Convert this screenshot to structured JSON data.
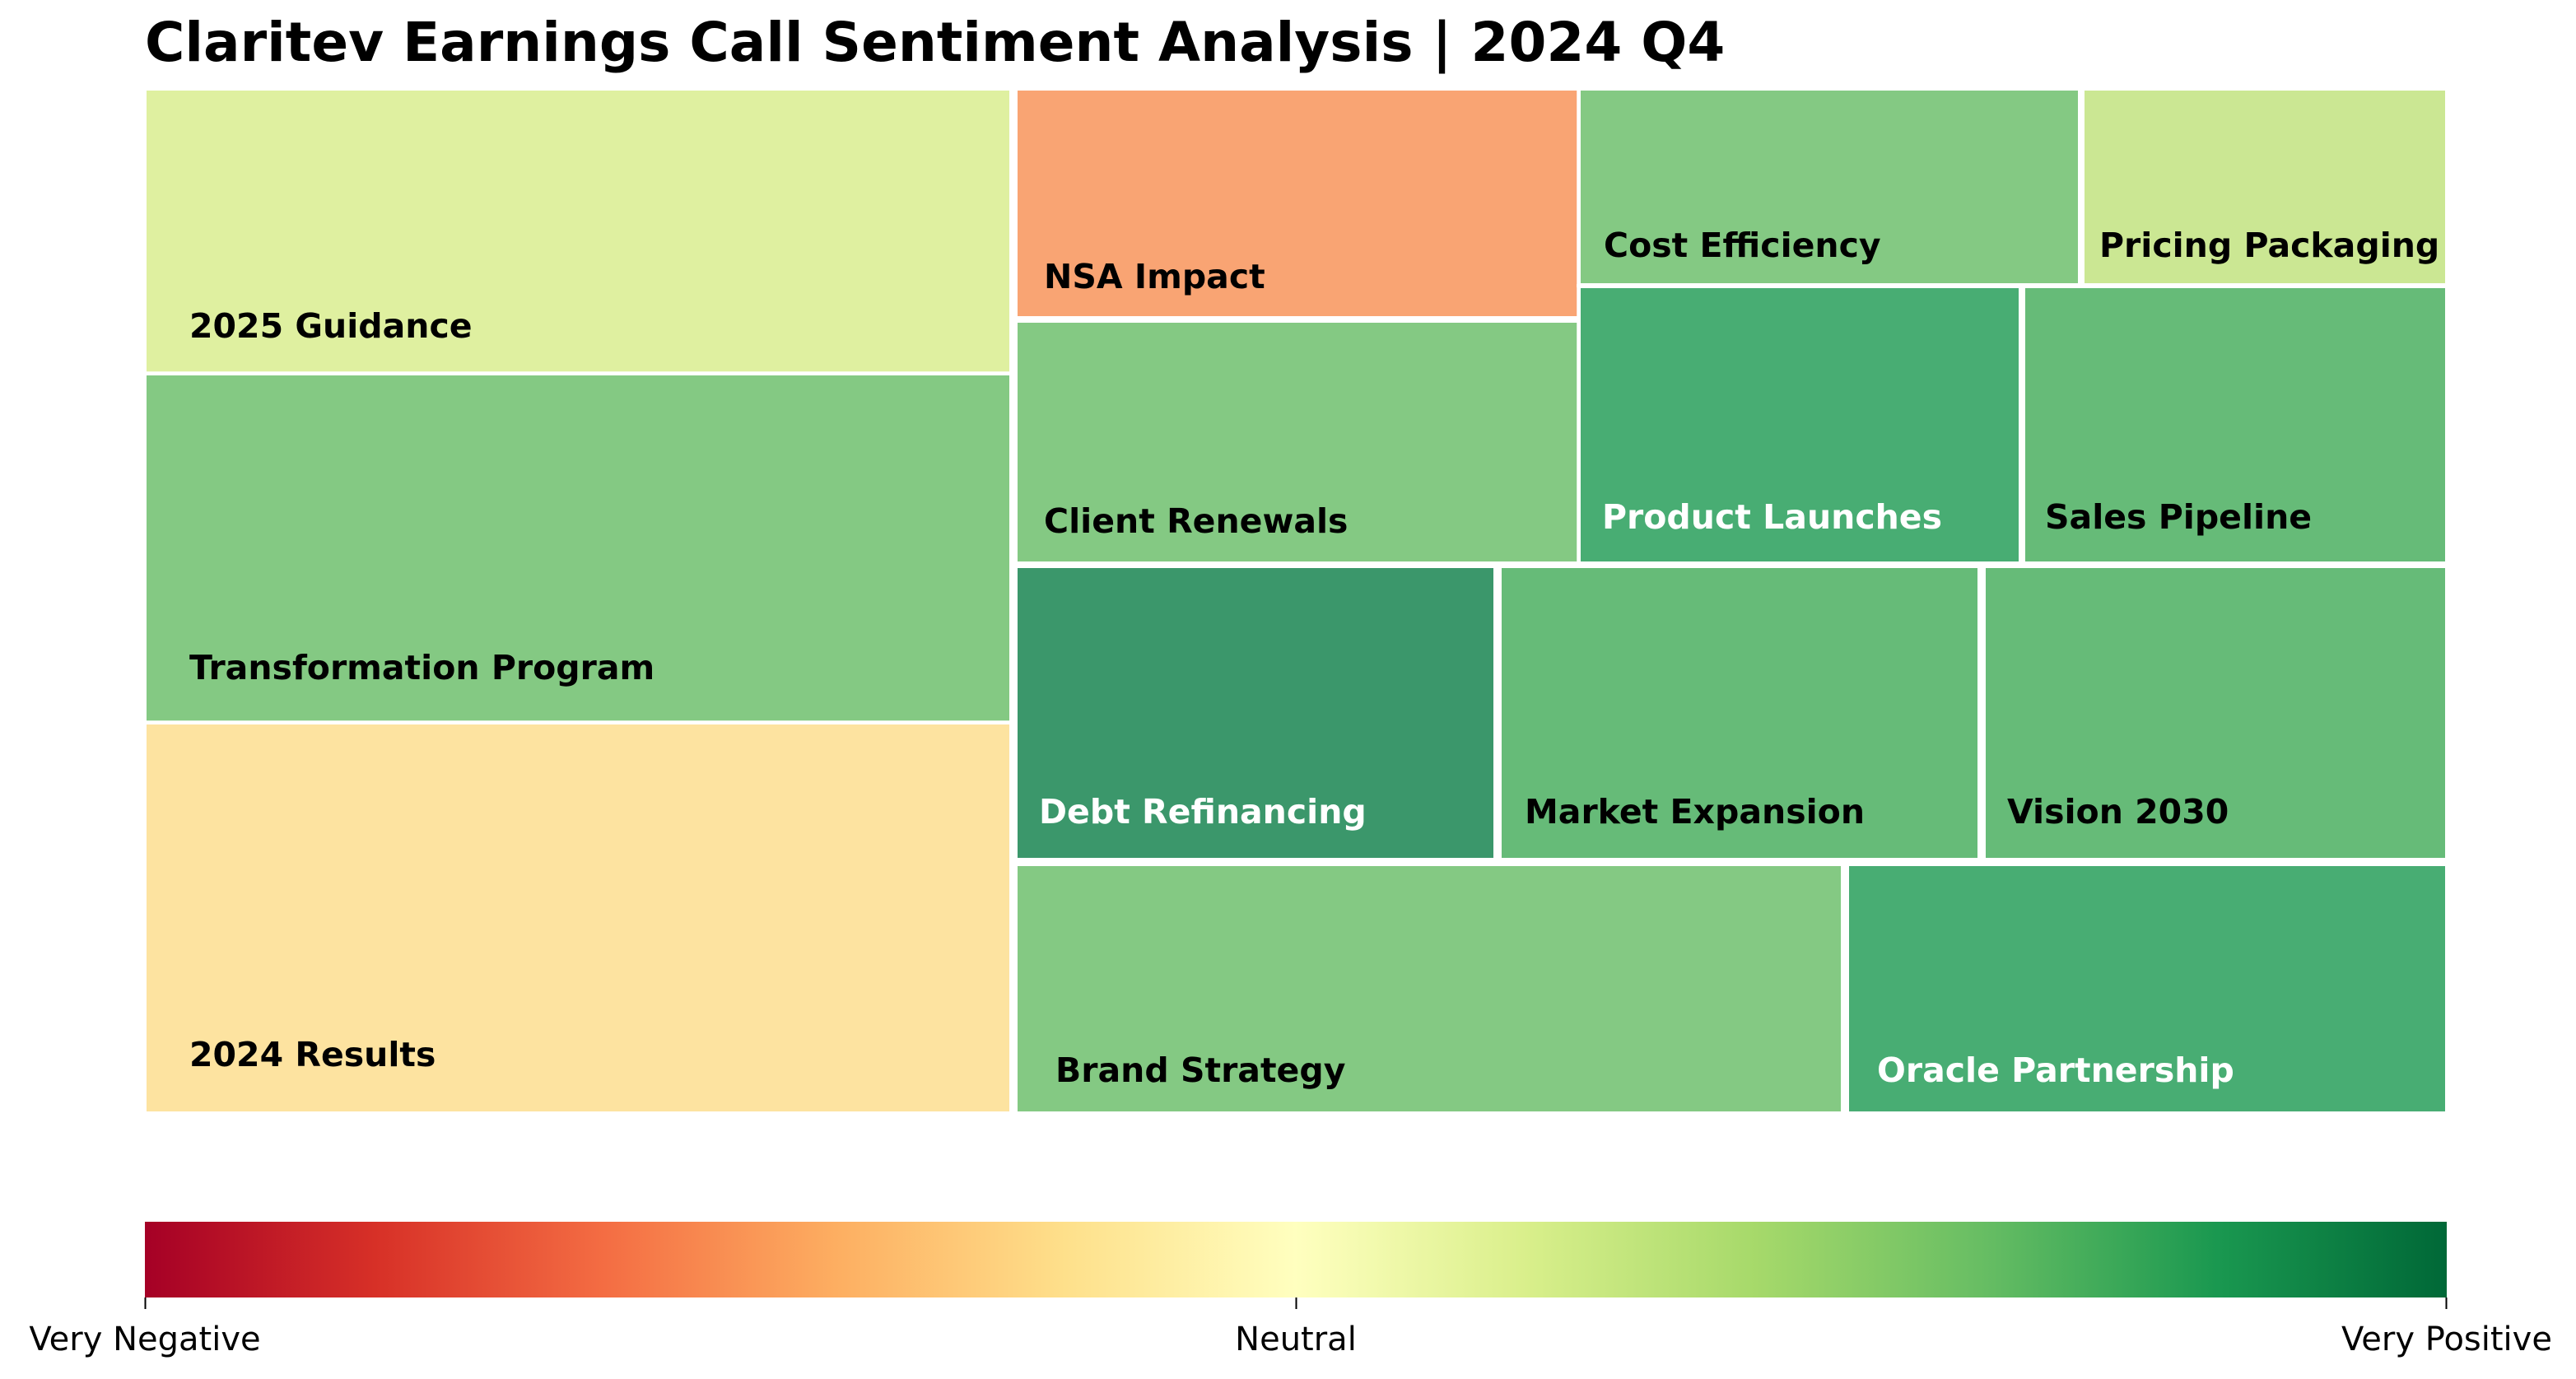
{
  "chart_data": {
    "type": "treemap",
    "title": "Claritev Earnings Call Sentiment Analysis | 2024 Q4",
    "color_scale": {
      "colormap": "RdYlGn",
      "range": [
        -1,
        1
      ],
      "tick_labels": [
        "Very Negative",
        "Neutral",
        "Very Positive"
      ],
      "stops": [
        "#a50026",
        "#d73027",
        "#f46d43",
        "#fdae61",
        "#fee08b",
        "#ffffbf",
        "#d9ef8b",
        "#a6d96a",
        "#66bd63",
        "#1a9850",
        "#006837"
      ]
    },
    "topics": [
      {
        "name": "2025 Guidance",
        "sentiment": 0.4,
        "color": "#dff0a0",
        "label_color": "#000000"
      },
      {
        "name": "Transformation Program",
        "sentiment": 0.7,
        "color": "#84c983",
        "label_color": "#000000"
      },
      {
        "name": "2024 Results",
        "sentiment": -0.05,
        "color": "#fde3a0",
        "label_color": "#000000"
      },
      {
        "name": "NSA Impact",
        "sentiment": -0.45,
        "color": "#f9a473",
        "label_color": "#000000"
      },
      {
        "name": "Client Renewals",
        "sentiment": 0.7,
        "color": "#84c983",
        "label_color": "#000000"
      },
      {
        "name": "Cost Efficiency",
        "sentiment": 0.7,
        "color": "#84c983",
        "label_color": "#000000"
      },
      {
        "name": "Pricing Packaging",
        "sentiment": 0.5,
        "color": "#cbe793",
        "label_color": "#000000"
      },
      {
        "name": "Product Launches",
        "sentiment": 0.9,
        "color": "#48ad73",
        "label_color": "#ffffff"
      },
      {
        "name": "Sales Pipeline",
        "sentiment": 0.8,
        "color": "#66bb78",
        "label_color": "#000000"
      },
      {
        "name": "Debt Refinancing",
        "sentiment": 0.95,
        "color": "#3b976b",
        "label_color": "#ffffff"
      },
      {
        "name": "Market Expansion",
        "sentiment": 0.8,
        "color": "#66bb78",
        "label_color": "#000000"
      },
      {
        "name": "Vision 2030",
        "sentiment": 0.8,
        "color": "#66bb78",
        "label_color": "#000000"
      },
      {
        "name": "Brand Strategy",
        "sentiment": 0.7,
        "color": "#84c983",
        "label_color": "#000000"
      },
      {
        "name": "Oracle Partnership",
        "sentiment": 0.9,
        "color": "#48ad73",
        "label_color": "#ffffff"
      }
    ]
  }
}
